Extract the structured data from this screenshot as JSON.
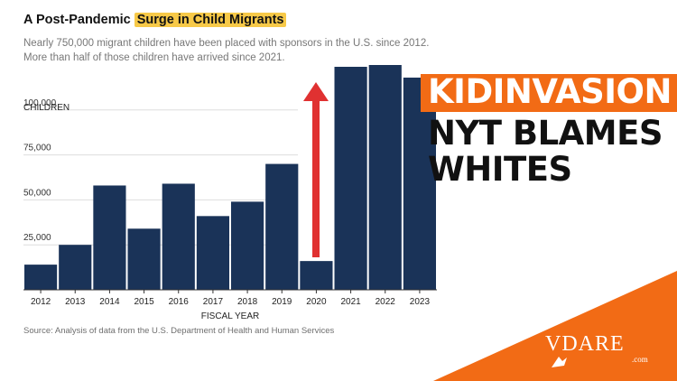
{
  "header": {
    "title_prefix": "A Post-Pandemic ",
    "title_highlight": "Surge in Child Migrants",
    "subtitle": "Nearly 750,000 migrant children have been placed with sponsors in the U.S. since 2012. More than half of those children have arrived since 2021."
  },
  "chart_data": {
    "type": "bar",
    "title": "A Post-Pandemic Surge in Child Migrants",
    "ylabel": "CHILDREN",
    "xlabel": "FISCAL YEAR",
    "ylim": [
      0,
      125000
    ],
    "yticks": [
      25000,
      50000,
      75000,
      100000
    ],
    "ytick_labels": [
      "25,000",
      "50,000",
      "75,000",
      "100,000"
    ],
    "categories": [
      "2012",
      "2013",
      "2014",
      "2015",
      "2016",
      "2017",
      "2018",
      "2019",
      "2020",
      "2021",
      "2022",
      "2023"
    ],
    "values": [
      14000,
      25000,
      58000,
      34000,
      59000,
      41000,
      49000,
      70000,
      16000,
      124000,
      128000,
      118000
    ],
    "bar_color": "#1a3358",
    "arrow_color": "#e03131"
  },
  "source": "Source: Analysis of data from the U.S. Department of Health and Human Services",
  "headline": {
    "line1": "KIDINVASION",
    "line2": "NYT BLAMES",
    "line3": "WHITES"
  },
  "logo": {
    "text": "VDARE",
    "sub": ".com"
  },
  "colors": {
    "orange": "#f26b15",
    "highlight": "#f7c948"
  }
}
